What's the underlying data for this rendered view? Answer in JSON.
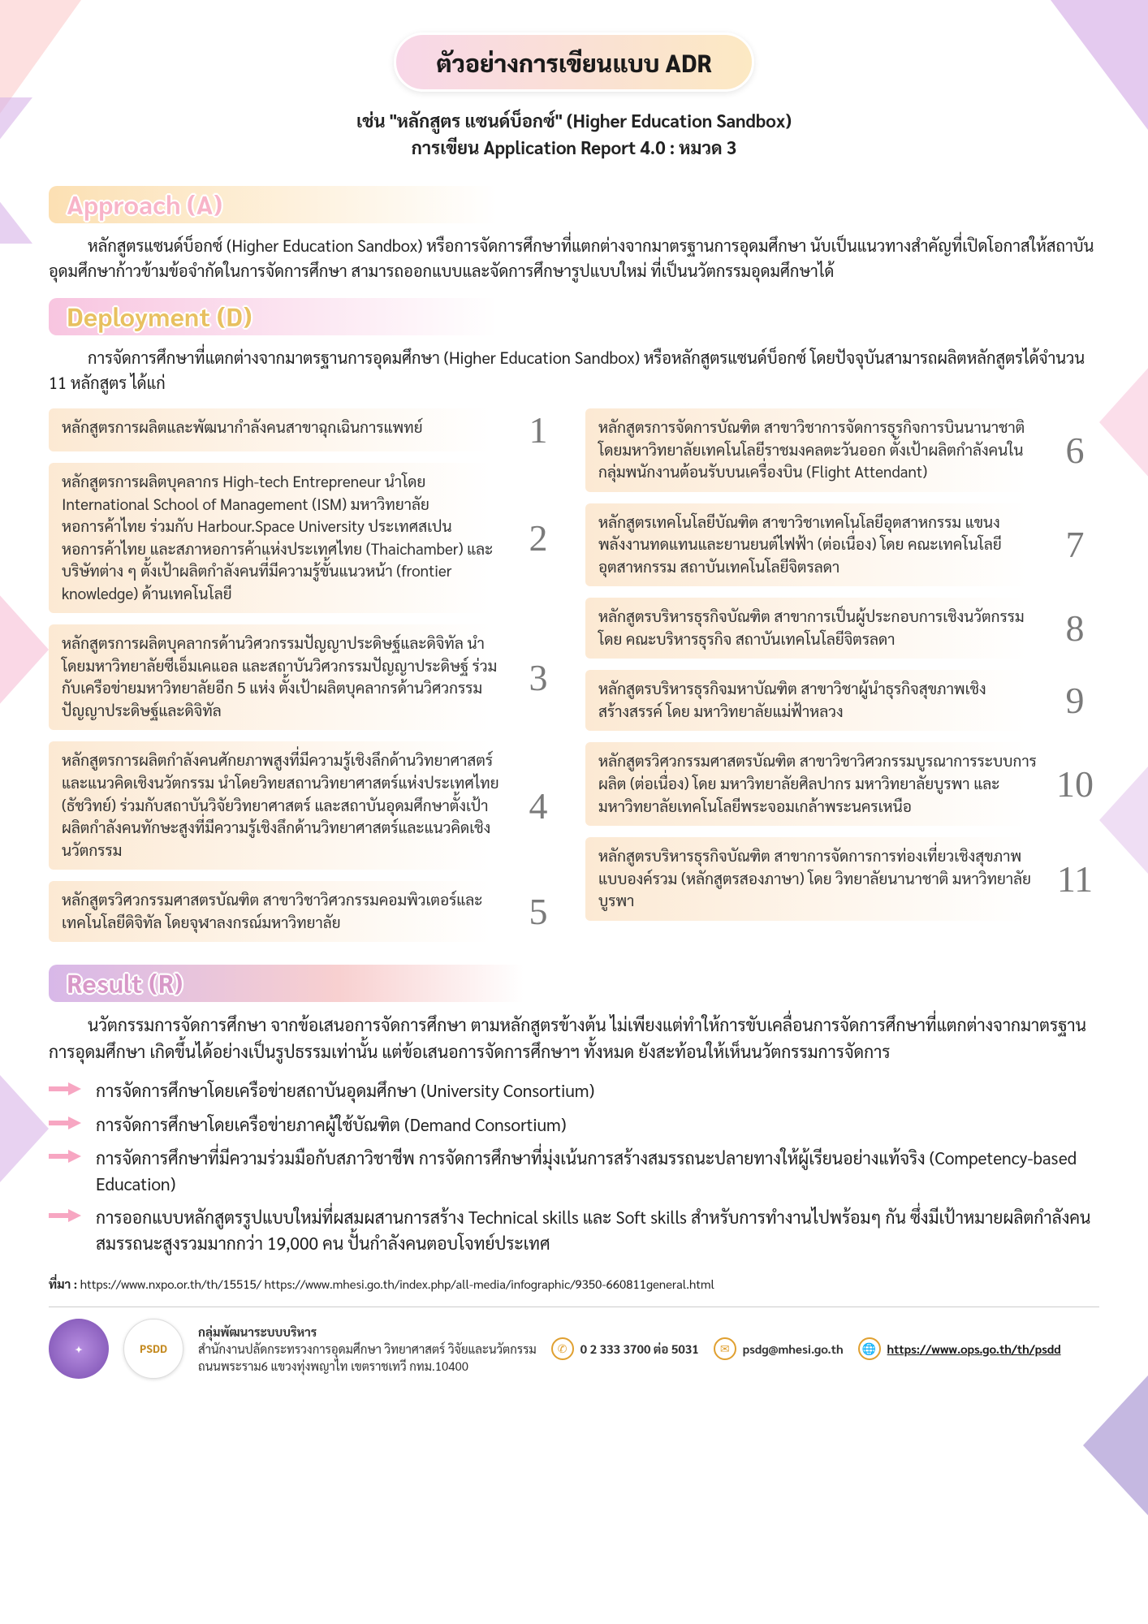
{
  "title": "ตัวอย่างการเขียนแบบ ADR",
  "subtitle_line1": "เช่น \"หลักสูตร แซนด์บ็อกซ์\" (Higher Education Sandbox)",
  "subtitle_line2": "การเขียน Application Report 4.0 : หมวด 3",
  "sections": {
    "approach": {
      "label": "Approach (A)",
      "text": "หลักสูตรแซนด์บ็อกซ์ (Higher Education Sandbox) หรือการจัดการศึกษาที่แตกต่างจากมาตรฐานการอุดมศึกษา นับเป็นแนวทางสำคัญที่เปิดโอกาสให้สถาบันอุดมศึกษาก้าวข้ามข้อจำกัดในการจัดการศึกษา สามารถออกแบบและจัดการศึกษารูปแบบใหม่ ที่เป็นนวัตกรรมอุดมศึกษาได้"
    },
    "deploy": {
      "label": "Deployment (D)",
      "text": "การจัดการศึกษาที่แตกต่างจากมาตรฐานการอุดมศึกษา (Higher Education Sandbox) หรือหลักสูตรแซนด์บ็อกซ์ โดยปัจจุบันสามารถผลิตหลักสูตรได้จำนวน 11 หลักสูตร ได้แก่"
    },
    "result": {
      "label": "Result (R)",
      "text": "นวัตกรรมการจัดการศึกษา จากข้อเสนอการจัดการศึกษา ตามหลักสูตรข้างต้น ไม่เพียงแต่ทำให้การขับเคลื่อนการจัดการศึกษาที่แตกต่างจากมาตรฐานการอุดมศึกษา เกิดขึ้นได้อย่างเป็นรูปธรรมเท่านั้น แต่ข้อเสนอการจัดการศึกษาฯ ทั้งหมด ยังสะท้อนให้เห็นนวัตกรรมการจัดการ"
    }
  },
  "items_left": [
    {
      "n": "1",
      "t": "หลักสูตรการผลิตและพัฒนากำลังคนสาขาฉุกเฉินการแพทย์"
    },
    {
      "n": "2",
      "t": "หลักสูตรการผลิตบุคลากร High-tech Entrepreneur นำโดย International School of Management (ISM) มหาวิทยาลัยหอการค้าไทย ร่วมกับ Harbour.Space University ประเทศสเปน หอการค้าไทย และสภาหอการค้าแห่งประเทศไทย (Thaichamber) และบริษัทต่าง ๆ ตั้งเป้าผลิตกำลังคนที่มีความรู้ขั้นแนวหน้า (frontier knowledge) ด้านเทคโนโลยี"
    },
    {
      "n": "3",
      "t": "หลักสูตรการผลิตบุคลากรด้านวิศวกรรมปัญญาประดิษฐ์และดิจิทัล นำโดยมหาวิทยาลัยซีเอ็มเคแอล และสถาบันวิศวกรรมปัญญาประดิษฐ์ ร่วมกับเครือข่ายมหาวิทยาลัยอีก 5 แห่ง ตั้งเป้าผลิตบุคลากรด้านวิศวกรรมปัญญาประดิษฐ์และดิจิทัล"
    },
    {
      "n": "4",
      "t": "หลักสูตรการผลิตกำลังคนศักยภาพสูงที่มีความรู้เชิงลึกด้านวิทยาศาสตร์และแนวคิดเชิงนวัตกรรม นำโดยวิทยสถานวิทยาศาสตร์แห่งประเทศไทย (ธัชวิทย์) ร่วมกับสถาบันวิจัยวิทยาศาสตร์ และสถาบันอุดมศึกษาตั้งเป้าผลิตกำลังคนทักษะสูงที่มีความรู้เชิงลึกด้านวิทยาศาสตร์และแนวคิดเชิงนวัตกรรม"
    },
    {
      "n": "5",
      "t": "หลักสูตรวิศวกรรมศาสตรบัณฑิต สาขาวิชาวิศวกรรมคอมพิวเตอร์และเทคโนโลยีดิจิทัล โดยจุฬาลงกรณ์มหาวิทยาลัย"
    }
  ],
  "items_right": [
    {
      "n": "6",
      "t": "หลักสูตรการจัดการบัณฑิต สาขาวิชาการจัดการธุรกิจการบินนานาชาติ โดยมหาวิทยาลัยเทคโนโลยีราชมงคลตะวันออก ตั้งเป้าผลิตกำลังคนในกลุ่มพนักงานต้อนรับบนเครื่องบิน (Flight Attendant)"
    },
    {
      "n": "7",
      "t": "หลักสูตรเทคโนโลยีบัณฑิต สาขาวิชาเทคโนโลยีอุตสาหกรรม แขนงพลังงานทดแทนและยานยนต์ไฟฟ้า (ต่อเนื่อง) โดย คณะเทคโนโลยีอุตสาหกรรม สถาบันเทคโนโลยีจิตรลดา"
    },
    {
      "n": "8",
      "t": "หลักสูตรบริหารธุรกิจบัณฑิต สาขาการเป็นผู้ประกอบการเชิงนวัตกรรม โดย คณะบริหารธุรกิจ สถาบันเทคโนโลยีจิตรลดา"
    },
    {
      "n": "9",
      "t": "หลักสูตรบริหารธุรกิจมหาบัณฑิต สาขาวิชาผู้นำธุรกิจสุขภาพเชิงสร้างสรรค์ โดย มหาวิทยาลัยแม่ฟ้าหลวง"
    },
    {
      "n": "10",
      "t": "หลักสูตรวิศวกรรมศาสตรบัณฑิต สาขาวิชาวิศวกรรมบูรณาการระบบการผลิต (ต่อเนื่อง) โดย มหาวิทยาลัยศิลปากร มหาวิทยาลัยบูรพา และมหาวิทยาลัยเทคโนโลยีพระจอมเกล้าพระนครเหนือ"
    },
    {
      "n": "11",
      "t": "หลักสูตรบริหารธุรกิจบัณฑิต สาขาการจัดการการท่องเที่ยวเชิงสุขภาพแบบองค์รวม (หลักสูตรสองภาษา) โดย วิทยาลัยนานาชาติ มหาวิทยาลัยบูรพา"
    }
  ],
  "result_bullets": [
    "การจัดการศึกษาโดยเครือข่ายสถาบันอุดมศึกษา (University Consortium)",
    "การจัดการศึกษาโดยเครือข่ายภาคผู้ใช้บัณฑิต (Demand Consortium)",
    "การจัดการศึกษาที่มีความร่วมมือกับสภาวิชาชีพ การจัดการศึกษาที่มุ่งเน้นการสร้างสมรรถนะปลายทางให้ผู้เรียนอย่างแท้จริง (Competency-based Education)",
    "การออกแบบหลักสูตรรูปแบบใหม่ที่ผสมผสานการสร้าง Technical skills และ Soft skills สำหรับการทำงานไปพร้อมๆ กัน ซึ่งมีเป้าหมายผลิตกำลังคนสมรรถนะสูงรวมมากกว่า 19,000 คน ปั้นกำลังคนตอบโจทย์ประเทศ"
  ],
  "source_label": "ที่มา :",
  "source_text": "https://www.nxpo.or.th/th/15515/ https://www.mhesi.go.th/index.php/all-media/infographic/9350-660811general.html",
  "footer": {
    "org_bold": "กลุ่มพัฒนาระบบบริหาร",
    "org_line2": "สำนักงานปลัดกระทรวงการอุดมศึกษา วิทยาศาสตร์ วิจัยและนวัตกรรม",
    "org_line3": "ถนนพระราม6 แขวงทุ่งพญาไท เขตราชเทวี กทม.10400",
    "phone": "0 2 333 3700 ต่อ 5031",
    "email": "psdg@mhesi.go.th",
    "url": "https://www.ops.go.th/th/psdd"
  },
  "colors": {
    "item_bg_start": "#fce9d3",
    "arrow": "#f7a6c2",
    "title_grad_a": "#f8d7e8",
    "title_grad_b": "#fce9c3"
  }
}
